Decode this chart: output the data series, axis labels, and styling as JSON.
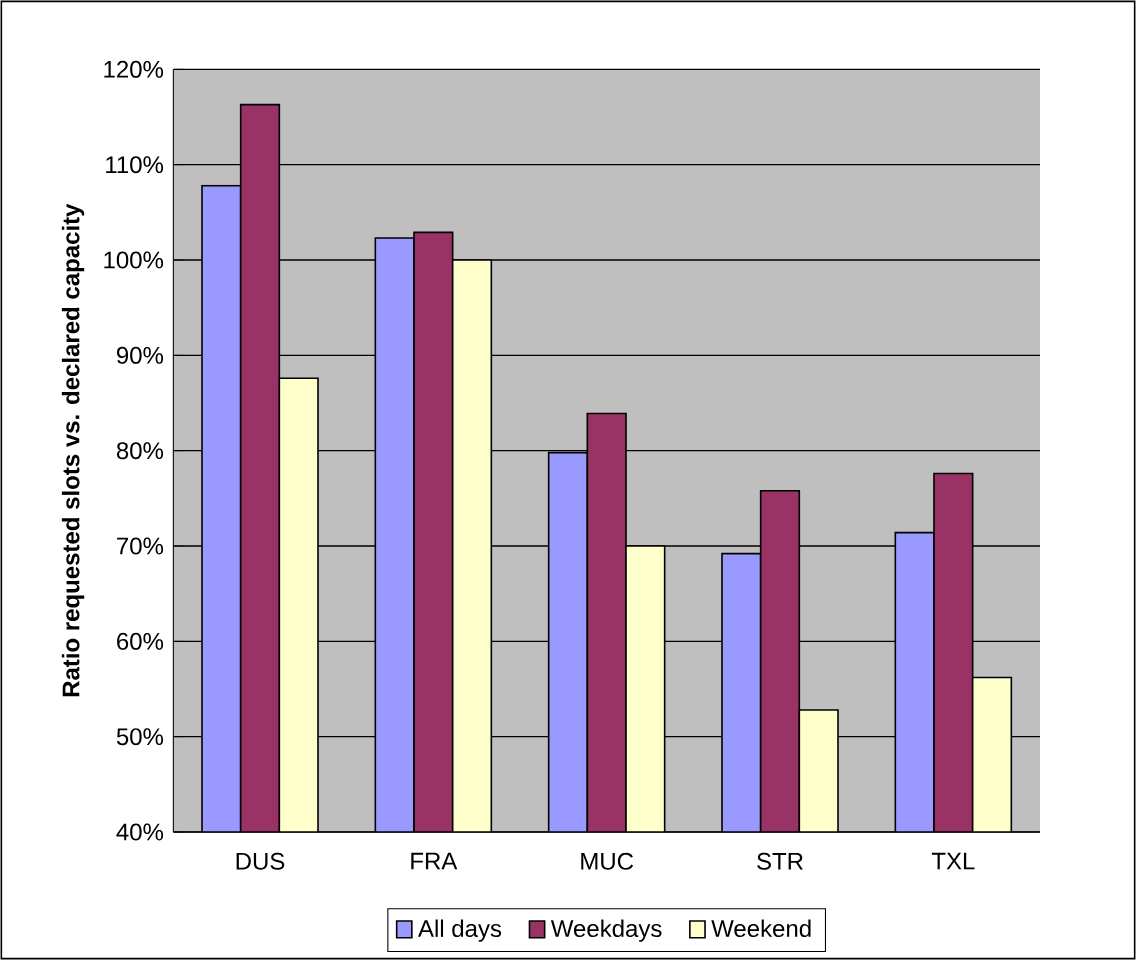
{
  "chart_data": {
    "type": "bar",
    "ylabel": "Ratio requested slots vs. declared capacity",
    "categories": [
      "DUS",
      "FRA",
      "MUC",
      "STR",
      "TXL"
    ],
    "series": [
      {
        "name": "All days",
        "color": "#9999ff",
        "values": [
          107.8,
          102.3,
          79.8,
          69.2,
          71.4
        ]
      },
      {
        "name": "Weekdays",
        "color": "#993366",
        "values": [
          116.3,
          102.9,
          83.9,
          75.8,
          77.6
        ]
      },
      {
        "name": "Weekend",
        "color": "#ffffcc",
        "values": [
          87.6,
          100,
          70,
          52.8,
          56.2
        ]
      }
    ],
    "ylim": [
      40,
      120
    ],
    "yticks": [
      {
        "value": 40,
        "label": "40%"
      },
      {
        "value": 50,
        "label": "50%"
      },
      {
        "value": 60,
        "label": "60%"
      },
      {
        "value": 70,
        "label": "70%"
      },
      {
        "value": 80,
        "label": "80%"
      },
      {
        "value": 90,
        "label": "90%"
      },
      {
        "value": 100,
        "label": "100%"
      },
      {
        "value": 110,
        "label": "110%"
      },
      {
        "value": 120,
        "label": "120%"
      }
    ],
    "grid": "y",
    "legend": "bottom"
  }
}
